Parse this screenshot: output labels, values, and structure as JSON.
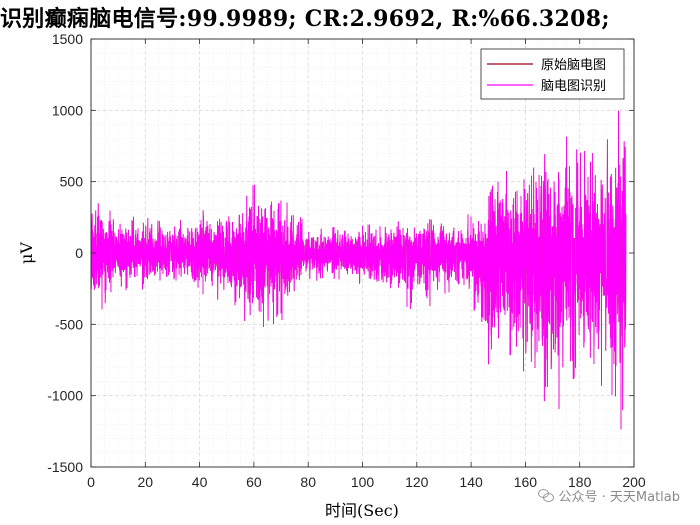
{
  "title": "识别癫痫脑电信号:99.9989; CR:2.9692, R:%66.3208;",
  "watermark": {
    "text": "公众号 · 天天Matlab",
    "icon": "wechat-icon"
  },
  "colors": {
    "original": "#a0001a",
    "recognized": "#ff00ff",
    "grid": "#d9d9d9",
    "axis": "#000000"
  },
  "chart_data": {
    "type": "line",
    "title": "识别癫痫脑电信号:99.9989; CR:2.9692, R:%66.3208;",
    "xlabel": "时间(Sec)",
    "ylabel": "μV",
    "xlim": [
      0,
      200
    ],
    "ylim": [
      -1500,
      1500
    ],
    "xticks": [
      0,
      20,
      40,
      60,
      80,
      100,
      120,
      140,
      160,
      180,
      200
    ],
    "yticks": [
      -1500,
      -1000,
      -500,
      0,
      500,
      1000,
      1500
    ],
    "xtick_labels": [
      "0",
      "20",
      "40",
      "60",
      "80",
      "100",
      "120",
      "140",
      "160",
      "180",
      "200"
    ],
    "ytick_labels": [
      "-1500",
      "-1000",
      "-500",
      "0",
      "500",
      "1000",
      "1500"
    ],
    "grid": true,
    "minor_grid": true,
    "legend_position": "top-right",
    "series": [
      {
        "name": "原始脑电图",
        "color": "#a0001a",
        "x_range": [
          0,
          197
        ],
        "envelope_x": [
          0,
          10,
          20,
          30,
          40,
          50,
          60,
          70,
          80,
          90,
          100,
          110,
          120,
          130,
          140,
          145,
          150,
          155,
          160,
          165,
          170,
          175,
          180,
          185,
          190,
          195,
          197
        ],
        "envelope_max": [
          380,
          260,
          250,
          200,
          300,
          290,
          480,
          400,
          190,
          180,
          190,
          230,
          270,
          200,
          280,
          320,
          580,
          570,
          700,
          770,
          880,
          820,
          700,
          740,
          780,
          1200,
          1180
        ],
        "envelope_min": [
          -460,
          -300,
          -250,
          -200,
          -280,
          -350,
          -540,
          -480,
          -200,
          -180,
          -220,
          -300,
          -420,
          -320,
          -300,
          -760,
          -830,
          -700,
          -850,
          -900,
          -1250,
          -920,
          -850,
          -900,
          -950,
          -1400,
          -900
        ]
      },
      {
        "name": "脑电图识别",
        "color": "#ff00ff",
        "x_range": [
          0,
          197
        ],
        "envelope_x": [
          0,
          10,
          20,
          30,
          40,
          50,
          60,
          70,
          80,
          90,
          100,
          110,
          120,
          130,
          140,
          145,
          150,
          155,
          160,
          165,
          170,
          175,
          180,
          185,
          190,
          195,
          197
        ],
        "envelope_max": [
          380,
          260,
          250,
          200,
          300,
          290,
          480,
          400,
          190,
          180,
          190,
          230,
          270,
          200,
          280,
          320,
          580,
          570,
          700,
          770,
          880,
          820,
          700,
          740,
          780,
          1200,
          1180
        ],
        "envelope_min": [
          -460,
          -300,
          -250,
          -200,
          -280,
          -350,
          -540,
          -480,
          -200,
          -180,
          -220,
          -300,
          -420,
          -320,
          -300,
          -760,
          -830,
          -700,
          -850,
          -900,
          -1250,
          -920,
          -850,
          -900,
          -950,
          -1400,
          -900
        ]
      }
    ]
  }
}
